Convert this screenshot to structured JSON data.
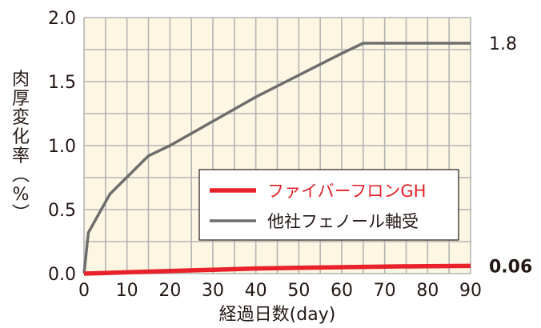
{
  "chart_data": {
    "type": "line",
    "xlabel": "経過日数(day)",
    "ylabel": "肉厚変化率(%)",
    "xlim": [
      0,
      90
    ],
    "ylim": [
      0,
      2.0
    ],
    "x_ticks": [
      "0",
      "10",
      "20",
      "30",
      "40",
      "50",
      "60",
      "70",
      "80",
      "90"
    ],
    "y_ticks": [
      "0.0",
      "0.5",
      "1.0",
      "1.5",
      "2.0"
    ],
    "grid": true,
    "legend_position": "center-right",
    "colors": {
      "background": "#fdf6e3",
      "grid": "#b4b4b4"
    },
    "series": [
      {
        "name": "ファイバーフロンGH",
        "color": "#e8212a",
        "x": [
          0,
          10,
          20,
          30,
          40,
          50,
          60,
          70,
          80,
          90
        ],
        "y": [
          0.0,
          0.01,
          0.02,
          0.03,
          0.04,
          0.045,
          0.05,
          0.055,
          0.058,
          0.06
        ],
        "end_label": "0.06"
      },
      {
        "name": "他社フェノール軸受",
        "color": "#6d6d6d",
        "x": [
          0,
          1,
          6,
          15,
          20,
          30,
          40,
          50,
          60,
          65,
          90
        ],
        "y": [
          0.0,
          0.32,
          0.62,
          0.92,
          1.0,
          1.19,
          1.38,
          1.55,
          1.72,
          1.8,
          1.8
        ],
        "end_label": "1.8"
      }
    ]
  }
}
